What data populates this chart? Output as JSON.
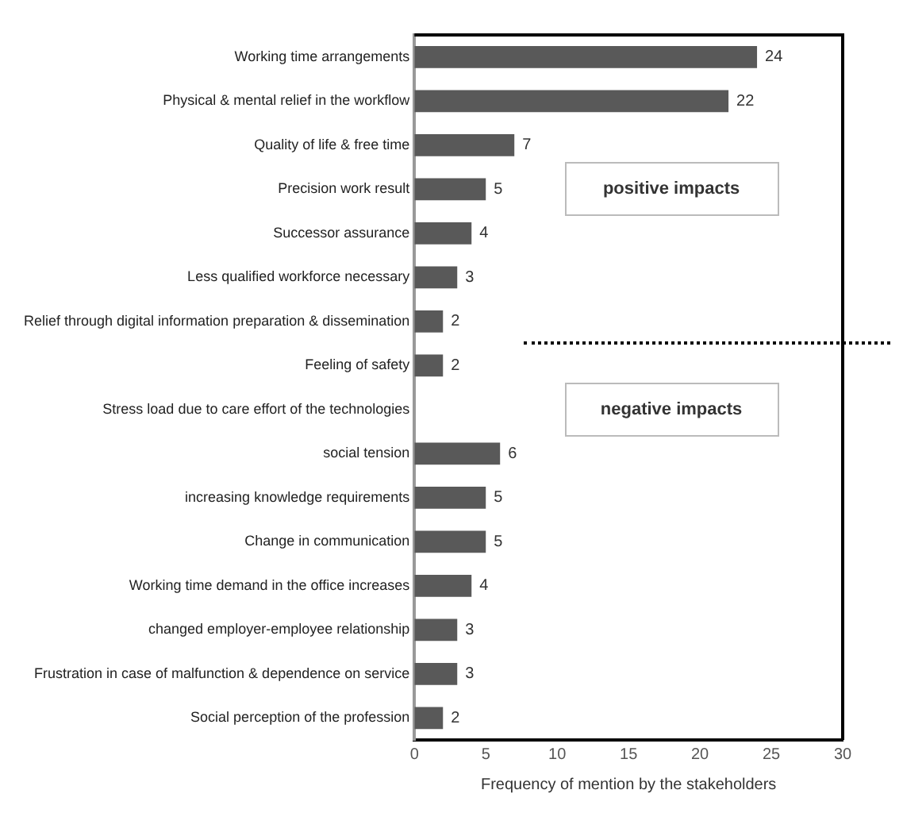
{
  "chart_data": {
    "type": "bar",
    "orientation": "horizontal",
    "xlabel": "Frequency of mention by the stakeholders",
    "categories": [
      "Working time arrangements",
      "Physical & mental relief in the workflow",
      "Quality of life & free time",
      "Precision work result",
      "Successor assurance",
      "Less qualified workforce necessary",
      "Relief through digital information preparation & dissemination",
      "Feeling of safety",
      "Stress load due to care effort of the technologies",
      "social tension",
      "increasing knowledge requirements",
      "Change in communication",
      "Working time demand in the office increases",
      "changed employer-employee relationship",
      "Frustration in case of malfunction & dependence on service",
      "Social perception of the profession"
    ],
    "values": [
      24,
      22,
      7,
      5,
      4,
      3,
      2,
      2,
      null,
      6,
      5,
      5,
      4,
      3,
      3,
      2
    ],
    "color": "#595959",
    "xlim": [
      0,
      30
    ],
    "xticks": [
      0,
      5,
      10,
      15,
      20,
      25,
      30
    ],
    "grid": false,
    "legend": false,
    "data_labels": true,
    "annotations": [
      "positive impacts",
      "negative impacts"
    ]
  }
}
